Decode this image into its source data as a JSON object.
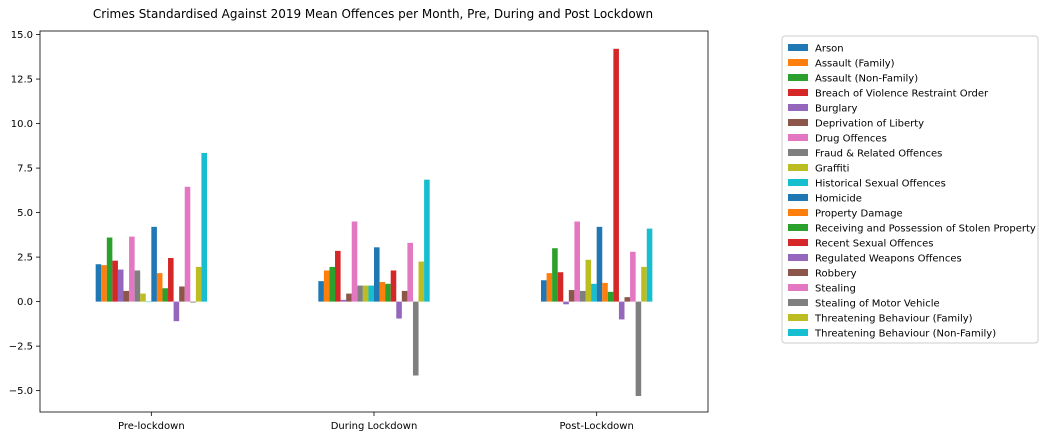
{
  "chart_data": {
    "type": "bar",
    "title": "Crimes Standardised Against 2019 Mean Offences per Month, Pre, During and Post Lockdown",
    "xlabel": "",
    "ylabel": "",
    "categories": [
      "Pre-lockdown",
      "During Lockdown",
      "Post-Lockdown"
    ],
    "ylim": [
      -6.2,
      15.2
    ],
    "yticks": [
      -5.0,
      -2.5,
      0.0,
      2.5,
      5.0,
      7.5,
      10.0,
      12.5,
      15.0
    ],
    "ytick_labels": [
      "−5.0",
      "−2.5",
      "0.0",
      "2.5",
      "5.0",
      "7.5",
      "10.0",
      "12.5",
      "15.0"
    ],
    "grid": false,
    "legend_position": "outside-right",
    "series": [
      {
        "name": "Arson",
        "color": "#1f77b4",
        "values": [
          2.1,
          1.15,
          1.2
        ]
      },
      {
        "name": "Assault (Family)",
        "color": "#ff7f0e",
        "values": [
          2.05,
          1.75,
          1.6
        ]
      },
      {
        "name": "Assault (Non-Family)",
        "color": "#2ca02c",
        "values": [
          3.6,
          1.95,
          3.0
        ]
      },
      {
        "name": "Breach of Violence Restraint Order",
        "color": "#d62728",
        "values": [
          2.3,
          2.85,
          1.65
        ]
      },
      {
        "name": "Burglary",
        "color": "#9467bd",
        "values": [
          1.8,
          0.1,
          -0.15
        ]
      },
      {
        "name": "Deprivation of Liberty",
        "color": "#8c564b",
        "values": [
          0.6,
          0.45,
          0.65
        ]
      },
      {
        "name": "Drug Offences",
        "color": "#e377c2",
        "values": [
          3.65,
          4.5,
          4.5
        ]
      },
      {
        "name": "Fraud & Related Offences",
        "color": "#7f7f7f",
        "values": [
          1.75,
          0.9,
          0.6
        ]
      },
      {
        "name": "Graffiti",
        "color": "#bcbd22",
        "values": [
          0.45,
          0.9,
          2.35
        ]
      },
      {
        "name": "Historical Sexual Offences",
        "color": "#17becf",
        "values": [
          0.0,
          0.9,
          1.0
        ]
      },
      {
        "name": "Homicide",
        "color": "#1f77b4",
        "values": [
          4.2,
          3.05,
          4.2
        ]
      },
      {
        "name": "Property Damage",
        "color": "#ff7f0e",
        "values": [
          1.6,
          1.1,
          1.05
        ]
      },
      {
        "name": "Receiving and Possession of Stolen Property",
        "color": "#2ca02c",
        "values": [
          0.75,
          1.0,
          0.55
        ]
      },
      {
        "name": "Recent Sexual Offences",
        "color": "#d62728",
        "values": [
          2.45,
          1.75,
          14.2
        ]
      },
      {
        "name": "Regulated Weapons Offences",
        "color": "#9467bd",
        "values": [
          -1.1,
          -0.95,
          -1.0
        ]
      },
      {
        "name": "Robbery",
        "color": "#8c564b",
        "values": [
          0.85,
          0.6,
          0.25
        ]
      },
      {
        "name": "Stealing",
        "color": "#e377c2",
        "values": [
          6.45,
          3.3,
          2.8
        ]
      },
      {
        "name": "Stealing of Motor Vehicle",
        "color": "#7f7f7f",
        "values": [
          -0.05,
          -4.15,
          -5.3
        ]
      },
      {
        "name": "Threatening Behaviour (Family)",
        "color": "#bcbd22",
        "values": [
          1.95,
          2.25,
          1.95
        ]
      },
      {
        "name": "Threatening Behaviour (Non-Family)",
        "color": "#17becf",
        "values": [
          8.35,
          6.85,
          4.1
        ]
      }
    ]
  }
}
